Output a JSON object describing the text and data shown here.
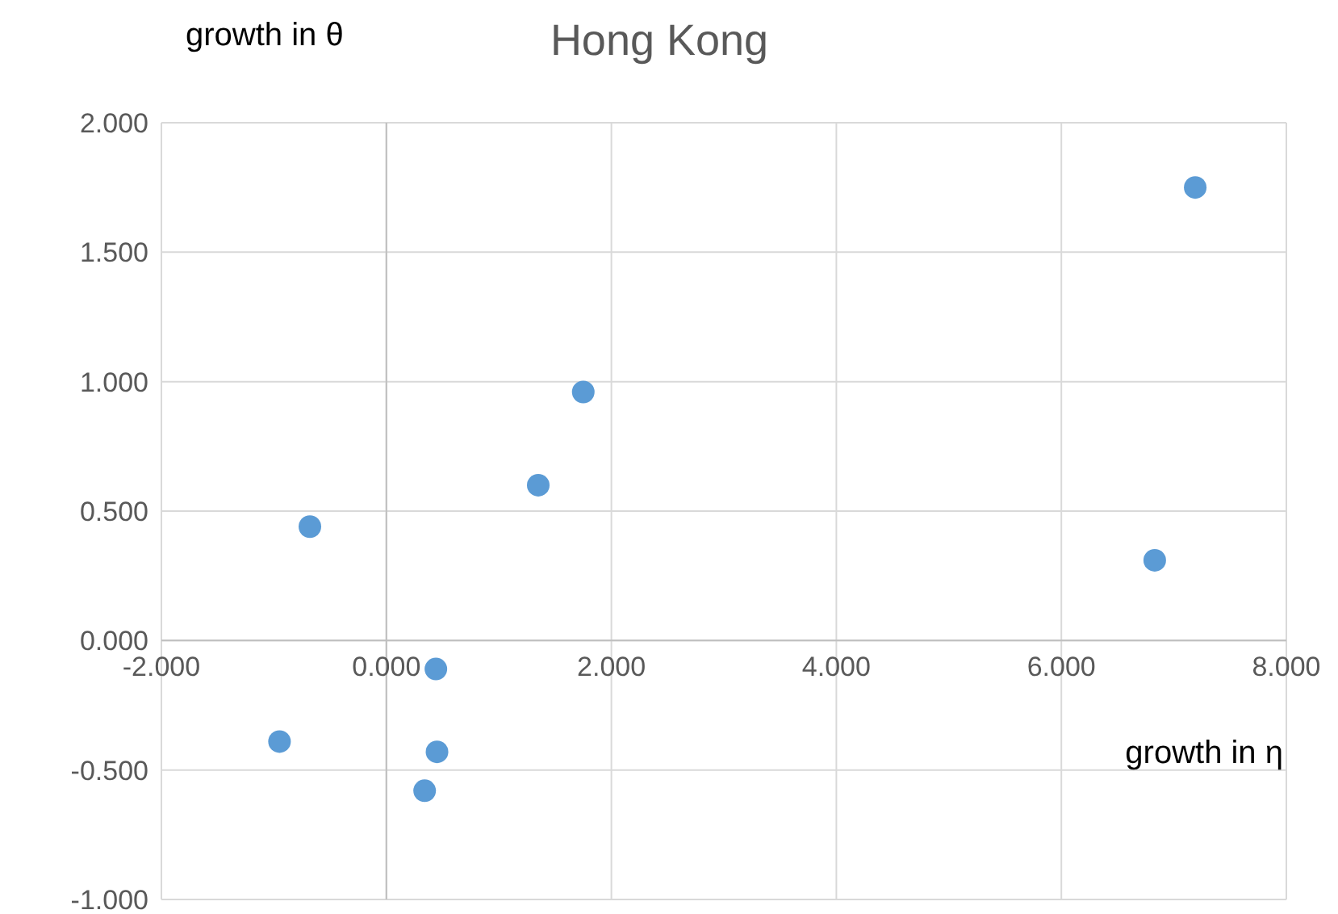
{
  "chart_data": {
    "type": "scatter",
    "title": "Hong Kong",
    "xlabel": "growth in η",
    "ylabel": "growth in θ",
    "series": [
      {
        "color": "#5b9bd5",
        "x": [
          7.19,
          1.75,
          1.35,
          -0.68,
          6.83,
          0.44,
          -0.95,
          0.45,
          0.34
        ],
        "values": [
          1.75,
          0.96,
          0.6,
          0.44,
          0.31,
          -0.11,
          -0.39,
          -0.43,
          -0.58
        ]
      }
    ],
    "xlim": [
      -2,
      8
    ],
    "ylim": [
      -1,
      2
    ],
    "xticks": [
      {
        "value": -2,
        "label": "-2.000"
      },
      {
        "value": 0,
        "label": "0.000"
      },
      {
        "value": 2,
        "label": "2.000"
      },
      {
        "value": 4,
        "label": "4.000"
      },
      {
        "value": 6,
        "label": "6.000"
      },
      {
        "value": 8,
        "label": "8.000"
      }
    ],
    "yticks": [
      {
        "value": -1,
        "label": "-1.000"
      },
      {
        "value": -0.5,
        "label": "-0.500"
      },
      {
        "value": 0,
        "label": "0.000"
      },
      {
        "value": 0.5,
        "label": "0.500"
      },
      {
        "value": 1,
        "label": "1.000"
      },
      {
        "value": 1.5,
        "label": "1.500"
      },
      {
        "value": 2,
        "label": "2.000"
      }
    ],
    "grid": true,
    "marker": "circle"
  }
}
